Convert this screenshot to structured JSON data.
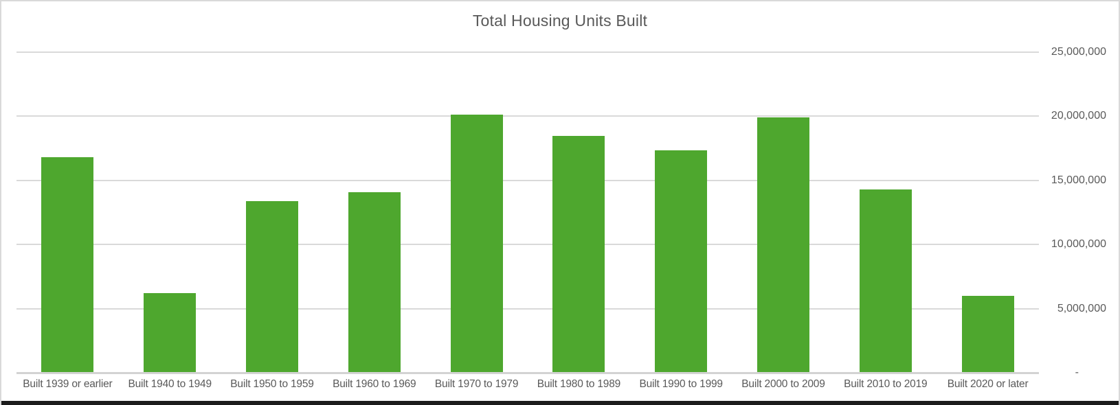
{
  "window": {
    "frame_color": "#d9d9d9",
    "bottom_edge_color": "#1c1c1c",
    "background": "#ffffff"
  },
  "chart_data": {
    "type": "bar",
    "title": "Total Housing Units Built",
    "categories": [
      "Built 1939 or earlier",
      "Built 1940 to 1949",
      "Built 1950 to 1959",
      "Built 1960 to 1969",
      "Built 1970 to 1979",
      "Built 1980 to 1989",
      "Built 1990 to 1999",
      "Built 2000 to 2009",
      "Built 2010 to 2019",
      "Built 2020 or later"
    ],
    "values": [
      16800000,
      6200000,
      13400000,
      14100000,
      20150000,
      18450000,
      17350000,
      19900000,
      14300000,
      6000000
    ],
    "xlabel": "",
    "ylabel": "",
    "ylim": [
      0,
      25000000
    ],
    "y_tick_labels_top_to_bottom": [
      "25,000,000",
      "20,000,000",
      "15,000,000",
      "10,000,000",
      "5,000,000",
      "-"
    ],
    "grid": true,
    "legend": "none",
    "y_axis_side": "right",
    "bar_color": "#4ea72e",
    "text_color": "#595959",
    "gridline_color": "#d9d9d9",
    "axis_line_color": "#d3d3d3"
  }
}
